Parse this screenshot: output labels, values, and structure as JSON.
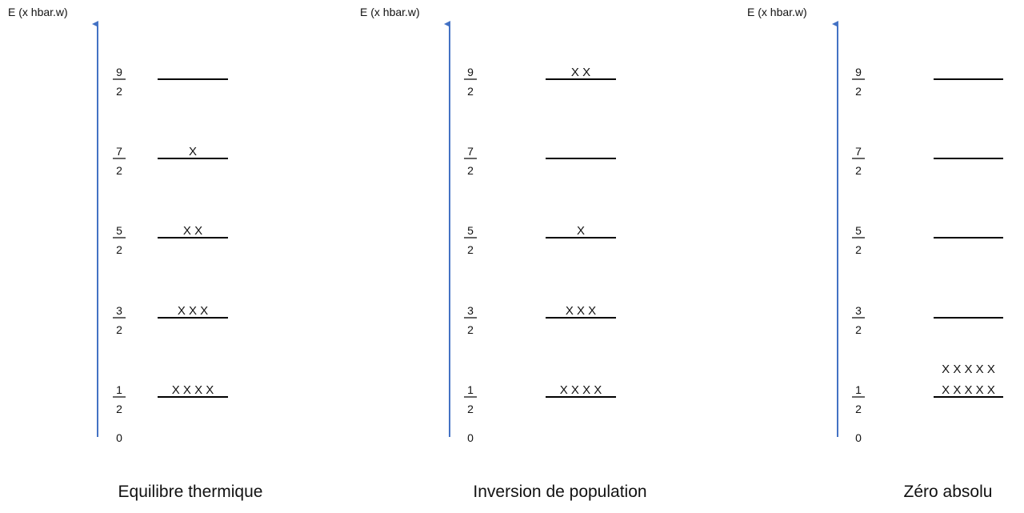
{
  "axis_label": "E (x hbar.w)",
  "zero_label": "0",
  "colors": {
    "axis": "#4472C4",
    "line": "#000000",
    "text": "#111111"
  },
  "levels": [
    {
      "num": "1",
      "den": "2"
    },
    {
      "num": "3",
      "den": "2"
    },
    {
      "num": "5",
      "den": "2"
    },
    {
      "num": "7",
      "den": "2"
    },
    {
      "num": "9",
      "den": "2"
    }
  ],
  "panels": [
    {
      "caption": "Equilibre thermique",
      "occupancy": [
        "X X X X",
        "X X X",
        "X X",
        "X",
        ""
      ]
    },
    {
      "caption": "Inversion de population",
      "occupancy": [
        "X X X X",
        "X X X",
        "X",
        "",
        "X X"
      ]
    },
    {
      "caption": "Zéro absolu",
      "occupancy": [
        "X X X X X\nX X X X X",
        "",
        "",
        "",
        ""
      ]
    }
  ]
}
